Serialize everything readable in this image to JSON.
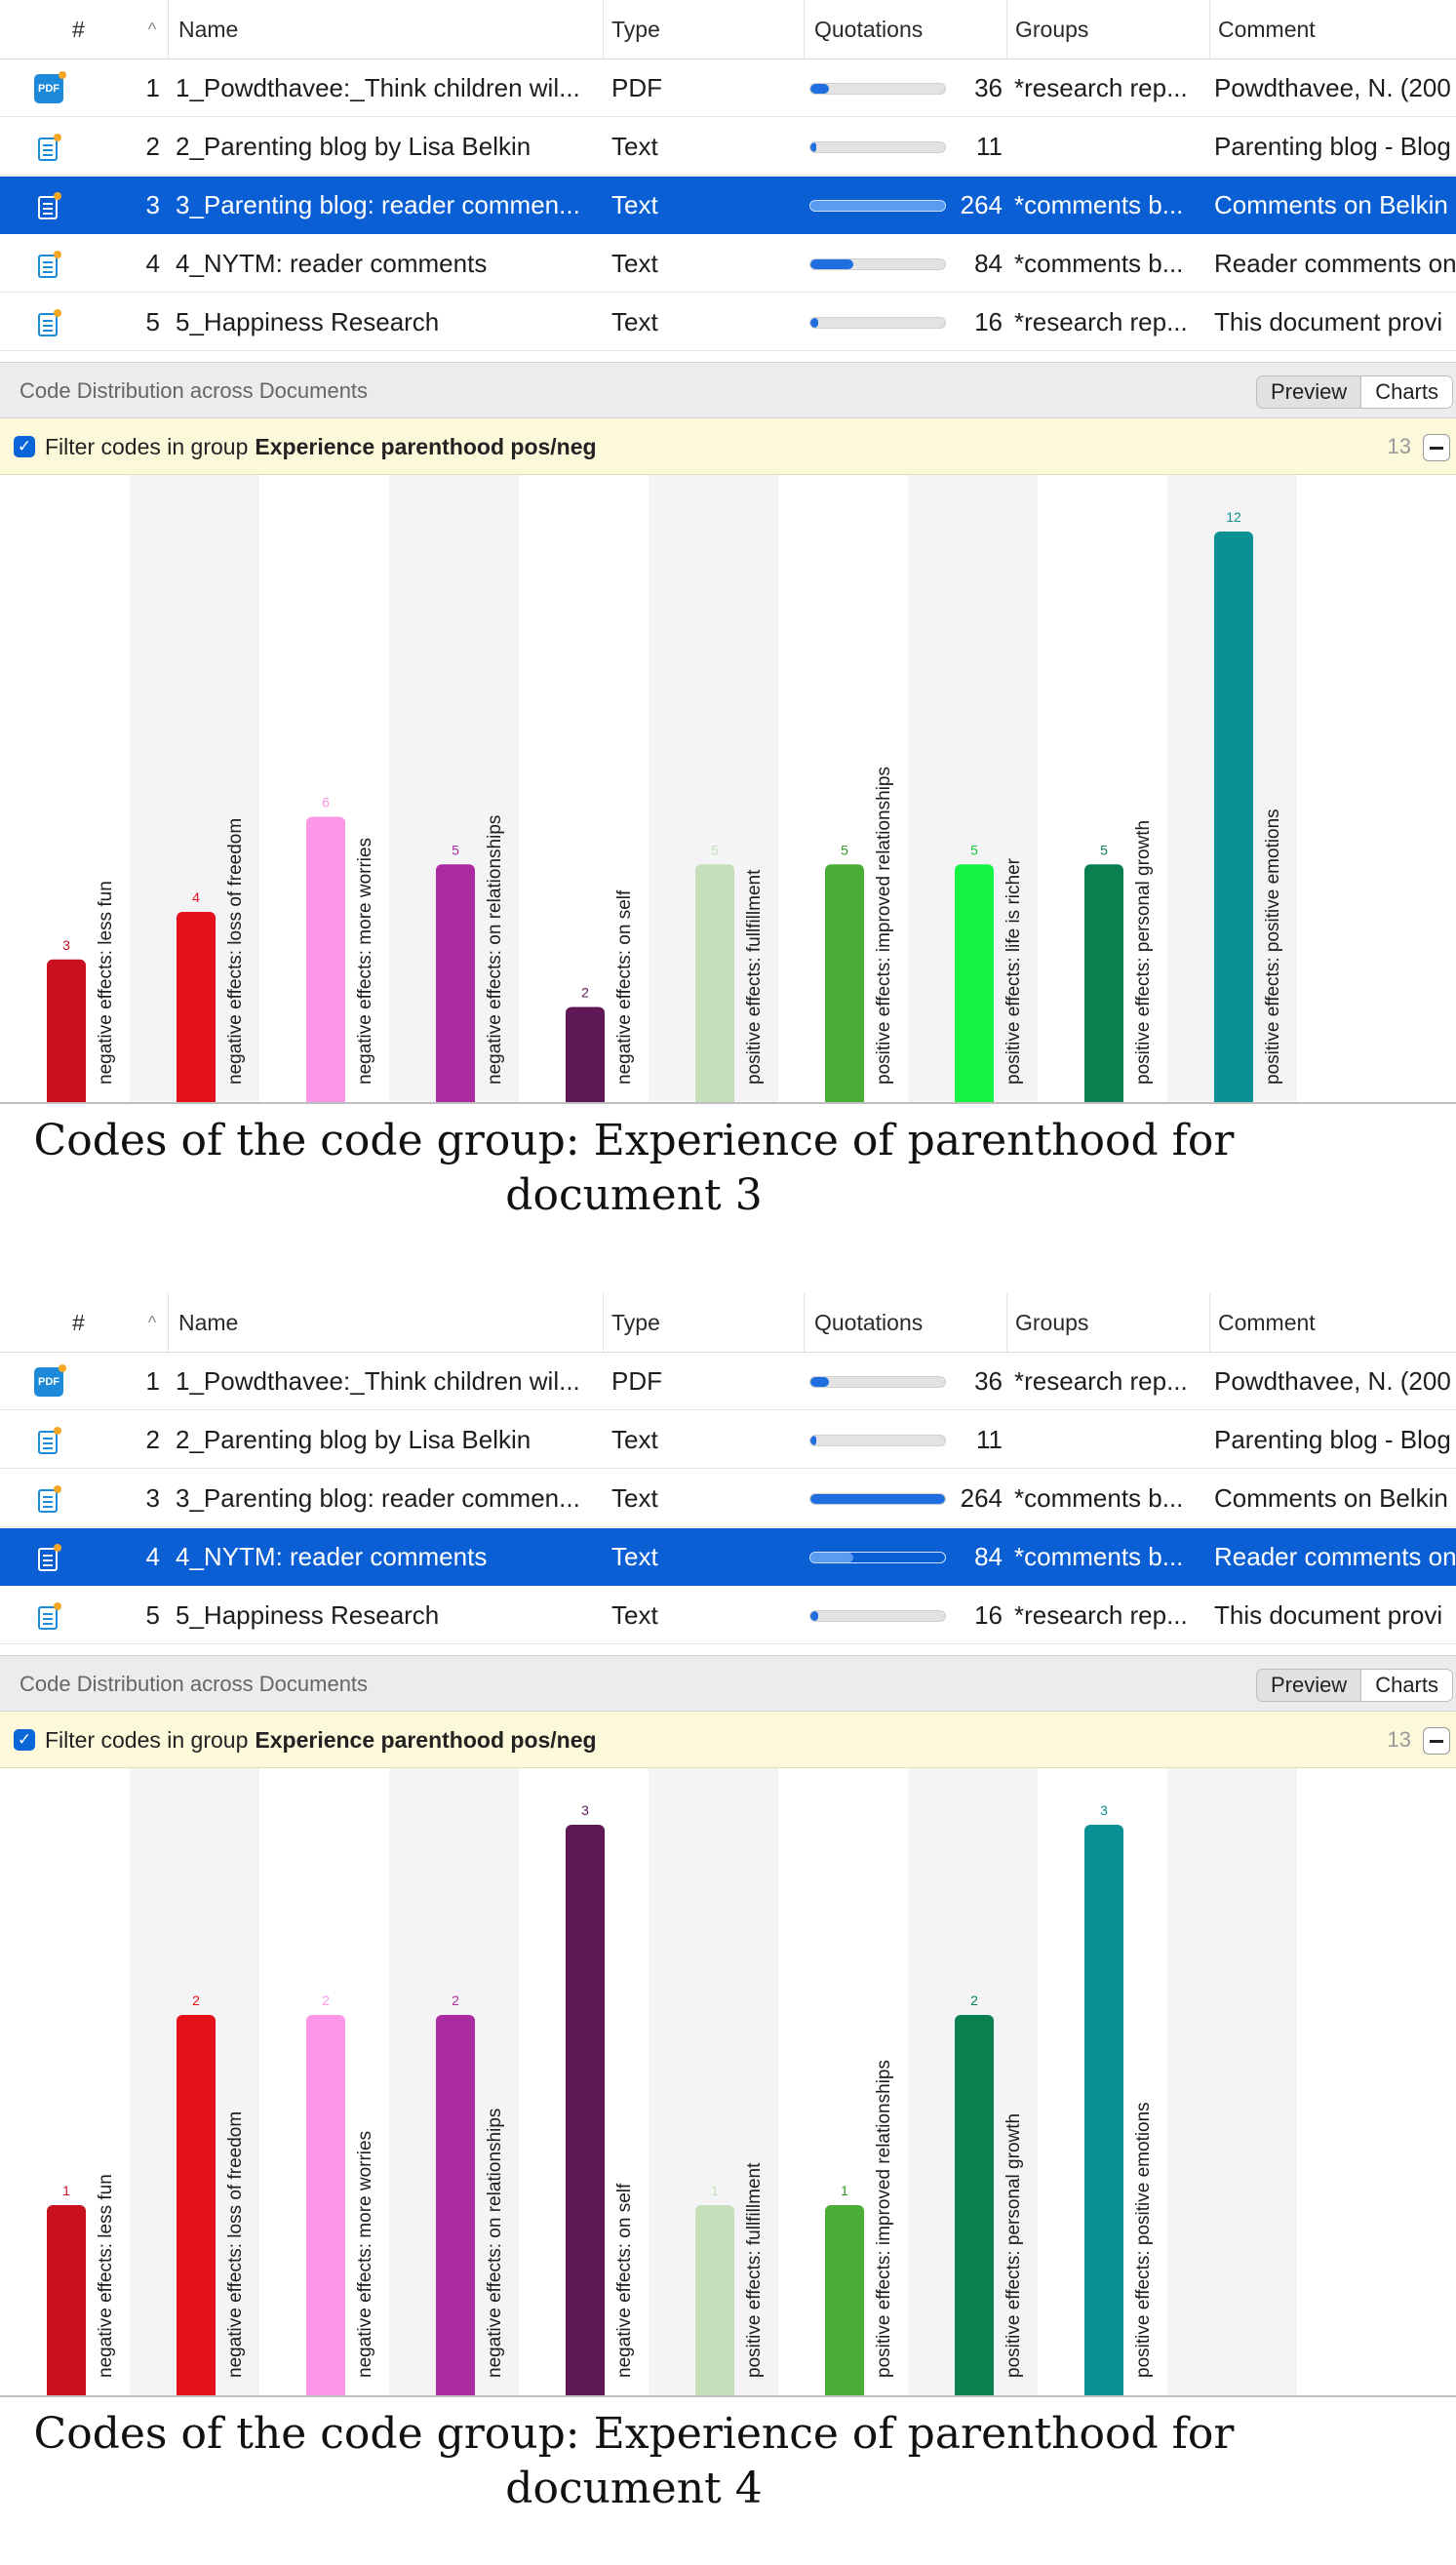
{
  "columns": {
    "hash": "#",
    "sort": "^",
    "name": "Name",
    "type": "Type",
    "quotations": "Quotations",
    "groups": "Groups",
    "comment": "Comment"
  },
  "documents": [
    {
      "num": "1",
      "name": "1_Powdthavee:_Think children wil...",
      "type": "PDF",
      "quotations": "36",
      "groups": "*research rep...",
      "comment": "Powdthavee, N. (200",
      "icon": "pdf-icon",
      "fill": 0.14
    },
    {
      "num": "2",
      "name": "2_Parenting blog by Lisa Belkin",
      "type": "Text",
      "quotations": "11",
      "groups": "",
      "comment": "Parenting blog - Blog",
      "icon": "text-document-icon",
      "fill": 0.04
    },
    {
      "num": "3",
      "name": "3_Parenting blog: reader commen...",
      "type": "Text",
      "quotations": "264",
      "groups": "*comments b...",
      "comment": "Comments on Belkin",
      "icon": "text-document-icon",
      "fill": 1.0
    },
    {
      "num": "4",
      "name": "4_NYTM: reader comments",
      "type": "Text",
      "quotations": "84",
      "groups": "*comments b...",
      "comment": "Reader comments on",
      "icon": "text-document-icon",
      "fill": 0.32
    },
    {
      "num": "5",
      "name": "5_Happiness Research",
      "type": "Text",
      "quotations": "16",
      "groups": "*research rep...",
      "comment": "This document provi",
      "icon": "text-document-icon",
      "fill": 0.06
    }
  ],
  "dist_title": "Code Distribution across Documents",
  "preview_label": "Preview",
  "charts_label": "Charts",
  "filter_prefix": "Filter codes in group",
  "filter_group": "Experience parenthood pos/neg",
  "filter_count": "13",
  "panels": [
    {
      "selected_row": 3,
      "caption": "Codes of the code group: Experience of parenthood for document 3",
      "chart_data": {
        "type": "bar",
        "categories": [
          "negative effects: less fun",
          "negative effects: loss of freedom",
          "negative effects: more worries",
          "negative effects: on relationships",
          "negative effects: on self",
          "positive effects: fullfillment",
          "positive effects: improved relationships",
          "positive effects: life is richer",
          "positive effects: personal growth",
          "positive effects: positive emotions"
        ],
        "values": [
          3,
          4,
          6,
          5,
          2,
          5,
          5,
          5,
          5,
          12
        ],
        "colors": [
          "#c8101f",
          "#e5101a",
          "#fb97e6",
          "#ab2a9f",
          "#5e1856",
          "#c4dfba",
          "#4aad35",
          "#15f442",
          "#0a8051",
          "#0a9193"
        ],
        "label_colors": [
          "#c8101f",
          "#e5101a",
          "#fb97e6",
          "#ab2a9f",
          "#5e1856",
          "#c4dfba",
          "#2e9a20",
          "#15c83a",
          "#0a8051",
          "#0a9193"
        ],
        "ymax": 12
      }
    },
    {
      "selected_row": 4,
      "caption": "Codes of the code group: Experience of parenthood for document 4",
      "chart_data": {
        "type": "bar",
        "categories": [
          "negative effects: less fun",
          "negative effects: loss of freedom",
          "negative effects: more worries",
          "negative effects: on relationships",
          "negative effects: on self",
          "positive effects: fullfillment",
          "positive effects: improved relationships",
          "positive effects: personal growth",
          "positive effects: positive emotions"
        ],
        "values": [
          1,
          2,
          2,
          2,
          3,
          1,
          1,
          2,
          3
        ],
        "colors": [
          "#c8101f",
          "#e5101a",
          "#fb97e6",
          "#ab2a9f",
          "#5e1856",
          "#c4dfba",
          "#4aad35",
          "#0a8051",
          "#0a9193"
        ],
        "label_colors": [
          "#c8101f",
          "#e5101a",
          "#fb97e6",
          "#ab2a9f",
          "#5e1856",
          "#c4dfba",
          "#2e9a20",
          "#0a8051",
          "#0a9193"
        ],
        "ymax": 3
      }
    }
  ]
}
